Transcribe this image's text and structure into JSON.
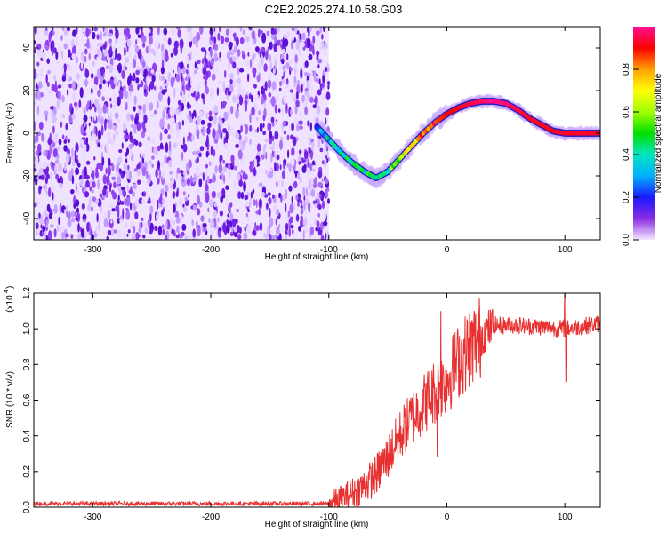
{
  "title": "C2E2.2025.274.10.58.G03",
  "chart_data": [
    {
      "type": "heatmap",
      "name": "spectrogram",
      "xlabel": "Height of straight line (km)",
      "ylabel": "Frequency (Hz)",
      "xlim": [
        -350,
        130
      ],
      "ylim": [
        -50,
        50
      ],
      "xticks": [
        "-300",
        "-200",
        "-100",
        "0",
        "100"
      ],
      "yticks": [
        "-40",
        "-20",
        "0",
        "20",
        "40"
      ],
      "ridge": {
        "height_km": [
          -110,
          -100,
          -90,
          -80,
          -70,
          -60,
          -50,
          -40,
          -30,
          -20,
          -10,
          0,
          10,
          20,
          30,
          40,
          50,
          60,
          70,
          80,
          90,
          100,
          110,
          120,
          130
        ],
        "frequency_hz": [
          3,
          -3,
          -9,
          -14,
          -18,
          -21,
          -18,
          -12,
          -6,
          0,
          5,
          9,
          12,
          14,
          15,
          15,
          14,
          11,
          7,
          4,
          1,
          0,
          0,
          0,
          0
        ],
        "amplitude": [
          0.3,
          0.35,
          0.4,
          0.4,
          0.42,
          0.45,
          0.5,
          0.6,
          0.7,
          0.8,
          0.85,
          0.9,
          0.92,
          0.95,
          0.97,
          1.0,
          0.98,
          0.95,
          0.93,
          0.92,
          0.92,
          0.93,
          0.93,
          0.93,
          0.93
        ]
      },
      "noise_region_km": [
        -350,
        -100
      ],
      "colorbar": {
        "label": "Normalized spectral amplitude",
        "ticks": [
          "0.0",
          "0.2",
          "0.4",
          "0.6",
          "0.8"
        ],
        "range": [
          0,
          1
        ],
        "colormap": [
          "#f4e8ff",
          "#8a2be2",
          "#1a1aff",
          "#00b0ff",
          "#00e5c0",
          "#00e000",
          "#a0ff00",
          "#ffff00",
          "#ffa000",
          "#ff0000",
          "#ff1090"
        ]
      }
    },
    {
      "type": "line",
      "name": "snr",
      "xlabel": "Height of straight line (km)",
      "ylabel": "SNR (10 * v/v)",
      "yscale_note": "(x10",
      "yscale_exp": "4",
      "xlim": [
        -350,
        130
      ],
      "ylim": [
        0,
        1.2
      ],
      "xticks": [
        "-300",
        "-200",
        "-100",
        "0",
        "100"
      ],
      "yticks": [
        "0.0",
        "0.2",
        "0.4",
        "0.6",
        "0.8",
        "1.0",
        "1.2"
      ],
      "color": "#e83030",
      "trend": {
        "height_km": [
          -350,
          -100,
          -90,
          -80,
          -70,
          -60,
          -50,
          -40,
          -30,
          -20,
          -10,
          0,
          10,
          20,
          30,
          40,
          60,
          80,
          100,
          120,
          130
        ],
        "snr_x1e4": [
          0.02,
          0.02,
          0.05,
          0.08,
          0.12,
          0.18,
          0.28,
          0.4,
          0.5,
          0.58,
          0.65,
          0.72,
          0.82,
          0.9,
          0.97,
          1.02,
          1.02,
          1.01,
          1.0,
          1.02,
          1.03
        ]
      },
      "spikes": [
        {
          "height_km": -5,
          "snr_x1e4": 1.1
        },
        {
          "height_km": -8,
          "snr_x1e4": 0.28
        },
        {
          "height_km": 100,
          "snr_x1e4": 1.24
        },
        {
          "height_km": 101,
          "snr_x1e4": 0.7
        }
      ]
    }
  ]
}
